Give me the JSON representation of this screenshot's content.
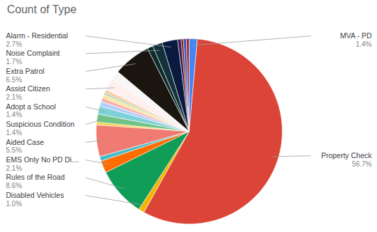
{
  "chart_data": {
    "type": "pie",
    "title": "Count of Type",
    "categories": [
      "MVA - PD",
      "Property Check",
      "Disabled Vehicles",
      "Rules of the Road",
      "EMS Only No PD Di…",
      null,
      "Aided Case",
      null,
      "Suspicious Condition",
      "Adopt a School",
      null,
      null,
      null,
      null,
      null,
      "Assist Citizen",
      null,
      "Extra Patrol",
      null,
      "Noise Complaint",
      "Alarm - Residential",
      null,
      null,
      null,
      null
    ],
    "values": [
      1.4,
      56.7,
      1.0,
      8.6,
      2.1,
      0.8,
      5.5,
      0.5,
      1.4,
      1.4,
      0.8,
      0.7,
      0.6,
      0.4,
      0.5,
      2.1,
      1.6,
      6.5,
      1.0,
      1.7,
      2.7,
      0.6,
      0.4,
      0.5,
      0.5
    ],
    "value_labels": [
      "1.4%",
      "56.7%",
      "1.0%",
      "8.6%",
      "2.1%",
      null,
      "5.5%",
      null,
      "1.4%",
      "1.4%",
      null,
      null,
      null,
      null,
      null,
      "2.1%",
      null,
      "6.5%",
      null,
      "1.7%",
      "2.7%",
      null,
      null,
      null,
      null
    ],
    "colors": [
      "#4285f4",
      "#db4437",
      "#f4b400",
      "#0f9d58",
      "#ff6d01",
      "#46bdc6",
      "#f07b72",
      "#fcd04f",
      "#71c287",
      "#7ed1d7",
      "#b3cefb",
      "#f7b4ae",
      "#fde49b",
      "#aedcba",
      "#ffc599",
      "#fdf0ef",
      "#f7f7f7",
      "#1b1510",
      "#0d2b2b",
      "#12313a",
      "#0a1a3f",
      "#3b1d5a",
      "#8a1c1c",
      "#2b55c8",
      "#b0281f"
    ],
    "data_labels": true
  }
}
